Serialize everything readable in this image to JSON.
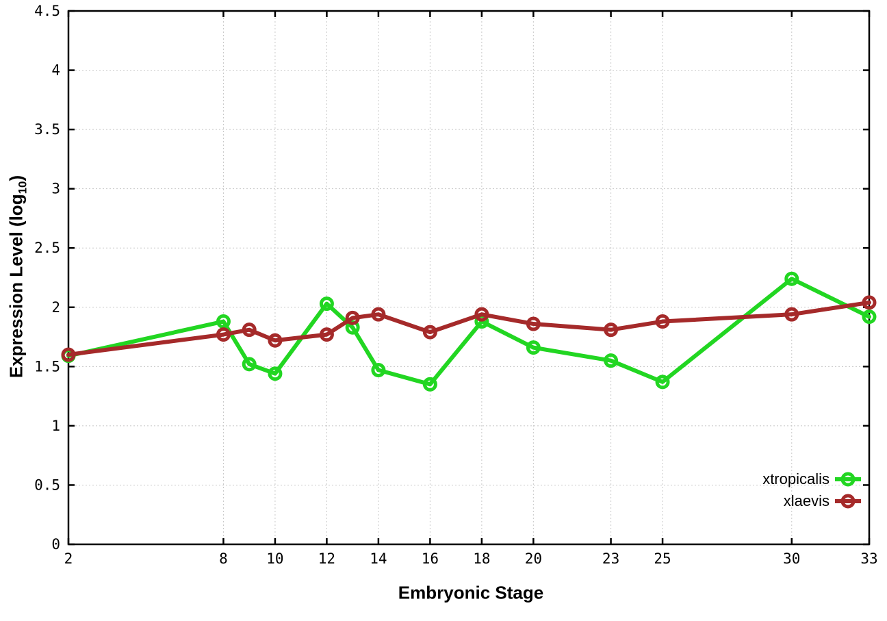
{
  "chart_data": {
    "type": "line",
    "x": [
      2,
      8,
      9,
      10,
      12,
      13,
      14,
      16,
      18,
      20,
      23,
      25,
      30,
      33
    ],
    "series": [
      {
        "name": "xtropicalis",
        "color": "#22D622",
        "values": [
          1.59,
          1.88,
          1.52,
          1.44,
          2.03,
          1.83,
          1.47,
          1.35,
          1.88,
          1.66,
          1.55,
          1.37,
          2.24,
          1.92
        ]
      },
      {
        "name": "xlaevis",
        "color": "#A52A2A",
        "values": [
          1.6,
          1.77,
          1.81,
          1.72,
          1.77,
          1.91,
          1.94,
          1.79,
          1.94,
          1.86,
          1.81,
          1.88,
          1.94,
          2.04
        ]
      }
    ],
    "title": "",
    "xlabel": "Embryonic Stage",
    "ylabel": "Expression Level (log10)",
    "ylabel_parts": {
      "prefix": "Expression Level (log",
      "sub": "10",
      "suffix": ")"
    },
    "xticks": [
      2,
      8,
      10,
      12,
      14,
      16,
      18,
      20,
      23,
      25,
      30,
      33
    ],
    "yticks": [
      0,
      0.5,
      1,
      1.5,
      2,
      2.5,
      3,
      3.5,
      4,
      4.5
    ],
    "xlim": [
      2,
      33
    ],
    "ylim": [
      0,
      4.5
    ],
    "grid": true,
    "legend_position": "inside-bottom-right",
    "legend": [
      "xtropicalis",
      "xlaevis"
    ],
    "colors": {
      "axis": "#000000",
      "text": "#000000",
      "grid": "#C8C8C8",
      "background": "#FFFFFF"
    }
  }
}
